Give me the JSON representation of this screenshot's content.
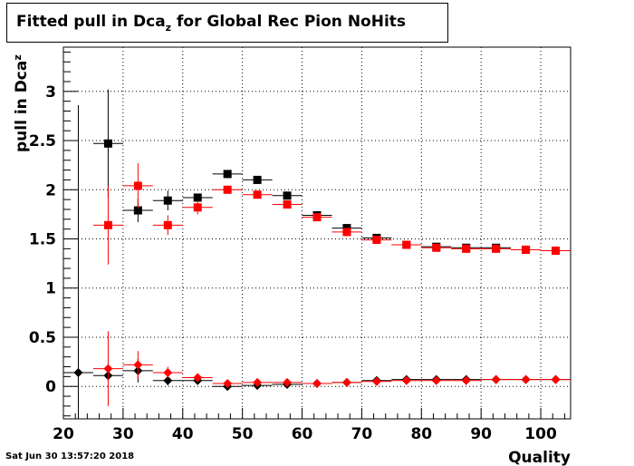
{
  "title": {
    "main": "Fitted pull in Dca",
    "sub": "z",
    "rest": " for Global Rec Pion NoHits"
  },
  "timestamp": "Sat Jun 30 13:57:20 2018",
  "chart_data": {
    "type": "scatter",
    "xlabel": "Quality",
    "ylabel": {
      "main": "pull in Dca",
      "sub": "z"
    },
    "xlim": [
      20,
      105
    ],
    "ylim": [
      -0.33,
      3.45
    ],
    "xticks": [
      20,
      30,
      40,
      50,
      60,
      70,
      80,
      90,
      100
    ],
    "yticks": [
      0,
      0.5,
      1,
      1.5,
      2,
      2.5,
      3
    ],
    "ytick_labels": [
      "0",
      "0.5",
      "1",
      "1.5",
      "2",
      "2.5",
      "3"
    ],
    "grid": true,
    "colors": {
      "black": "#000000",
      "red": "#ff0000"
    },
    "series": [
      {
        "marker": "square",
        "color": "black",
        "points": [
          {
            "x": 27.5,
            "y": 2.47,
            "xerr": 2.5,
            "yerr": 0.55
          },
          {
            "x": 32.5,
            "y": 1.79,
            "xerr": 2.5,
            "yerr": 0.12
          },
          {
            "x": 37.5,
            "y": 1.89,
            "xerr": 2.5,
            "yerr": 0.1
          },
          {
            "x": 42.5,
            "y": 1.92,
            "xerr": 2.5,
            "yerr": 0.04
          },
          {
            "x": 47.5,
            "y": 2.16,
            "xerr": 2.5,
            "yerr": 0.04
          },
          {
            "x": 52.5,
            "y": 2.1,
            "xerr": 2.5,
            "yerr": 0.03
          },
          {
            "x": 57.5,
            "y": 1.94,
            "xerr": 2.5,
            "yerr": 0.02
          },
          {
            "x": 62.5,
            "y": 1.74,
            "xerr": 2.5,
            "yerr": 0.02
          },
          {
            "x": 67.5,
            "y": 1.61,
            "xerr": 2.5,
            "yerr": 0.02
          },
          {
            "x": 72.5,
            "y": 1.51,
            "xerr": 2.5,
            "yerr": 0.01
          },
          {
            "x": 77.5,
            "y": 1.44,
            "xerr": 2.5,
            "yerr": 0.01
          },
          {
            "x": 82.5,
            "y": 1.42,
            "xerr": 2.5,
            "yerr": 0.01
          },
          {
            "x": 87.5,
            "y": 1.41,
            "xerr": 2.5,
            "yerr": 0.01
          },
          {
            "x": 92.5,
            "y": 1.41,
            "xerr": 2.5,
            "yerr": 0.01
          },
          {
            "x": 97.5,
            "y": 1.39,
            "xerr": 2.5,
            "yerr": 0.01
          },
          {
            "x": 102.5,
            "y": 1.38,
            "xerr": 2.5,
            "yerr": 0.01
          }
        ]
      },
      {
        "marker": "square",
        "color": "red",
        "points": [
          {
            "x": 27.5,
            "y": 1.64,
            "xerr": 2.5,
            "yerr": 0.4
          },
          {
            "x": 32.5,
            "y": 2.04,
            "xerr": 2.5,
            "yerr": 0.23
          },
          {
            "x": 37.5,
            "y": 1.64,
            "xerr": 2.5,
            "yerr": 0.1
          },
          {
            "x": 42.5,
            "y": 1.82,
            "xerr": 2.5,
            "yerr": 0.07
          },
          {
            "x": 47.5,
            "y": 2.0,
            "xerr": 2.5,
            "yerr": 0.04
          },
          {
            "x": 52.5,
            "y": 1.95,
            "xerr": 2.5,
            "yerr": 0.03
          },
          {
            "x": 57.5,
            "y": 1.85,
            "xerr": 2.5,
            "yerr": 0.02
          },
          {
            "x": 62.5,
            "y": 1.72,
            "xerr": 2.5,
            "yerr": 0.02
          },
          {
            "x": 67.5,
            "y": 1.57,
            "xerr": 2.5,
            "yerr": 0.02
          },
          {
            "x": 72.5,
            "y": 1.49,
            "xerr": 2.5,
            "yerr": 0.01
          },
          {
            "x": 77.5,
            "y": 1.44,
            "xerr": 2.5,
            "yerr": 0.01
          },
          {
            "x": 82.5,
            "y": 1.41,
            "xerr": 2.5,
            "yerr": 0.01
          },
          {
            "x": 87.5,
            "y": 1.4,
            "xerr": 2.5,
            "yerr": 0.01
          },
          {
            "x": 92.5,
            "y": 1.4,
            "xerr": 2.5,
            "yerr": 0.01
          },
          {
            "x": 97.5,
            "y": 1.39,
            "xerr": 2.5,
            "yerr": 0.01
          },
          {
            "x": 102.5,
            "y": 1.38,
            "xerr": 2.5,
            "yerr": 0.01
          }
        ]
      },
      {
        "marker": "diamond",
        "color": "black",
        "points": [
          {
            "x": 22.5,
            "y": 0.14,
            "xerr": 2.5,
            "yerr": 2.72
          },
          {
            "x": 27.5,
            "y": 0.11,
            "xerr": 2.5,
            "yerr": 0.05
          },
          {
            "x": 32.5,
            "y": 0.16,
            "xerr": 2.5,
            "yerr": 0.12
          },
          {
            "x": 37.5,
            "y": 0.06,
            "xerr": 2.5,
            "yerr": 0.05
          },
          {
            "x": 42.5,
            "y": 0.06,
            "xerr": 2.5,
            "yerr": 0.03
          },
          {
            "x": 47.5,
            "y": 0.0,
            "xerr": 2.5,
            "yerr": 0.02
          },
          {
            "x": 52.5,
            "y": 0.01,
            "xerr": 2.5,
            "yerr": 0.02
          },
          {
            "x": 57.5,
            "y": 0.02,
            "xerr": 2.5,
            "yerr": 0.02
          },
          {
            "x": 62.5,
            "y": 0.03,
            "xerr": 2.5,
            "yerr": 0.01
          },
          {
            "x": 67.5,
            "y": 0.04,
            "xerr": 2.5,
            "yerr": 0.01
          },
          {
            "x": 72.5,
            "y": 0.06,
            "xerr": 2.5,
            "yerr": 0.01
          },
          {
            "x": 77.5,
            "y": 0.07,
            "xerr": 2.5,
            "yerr": 0.01
          },
          {
            "x": 82.5,
            "y": 0.07,
            "xerr": 2.5,
            "yerr": 0.01
          },
          {
            "x": 87.5,
            "y": 0.07,
            "xerr": 2.5,
            "yerr": 0.01
          },
          {
            "x": 92.5,
            "y": 0.07,
            "xerr": 2.5,
            "yerr": 0.01
          },
          {
            "x": 97.5,
            "y": 0.07,
            "xerr": 2.5,
            "yerr": 0.01
          },
          {
            "x": 102.5,
            "y": 0.07,
            "xerr": 2.5,
            "yerr": 0.01
          }
        ]
      },
      {
        "marker": "diamond",
        "color": "red",
        "points": [
          {
            "x": 27.5,
            "y": 0.18,
            "xerr": 2.5,
            "yerr": 0.38
          },
          {
            "x": 32.5,
            "y": 0.22,
            "xerr": 2.5,
            "yerr": 0.14
          },
          {
            "x": 37.5,
            "y": 0.14,
            "xerr": 2.5,
            "yerr": 0.06
          },
          {
            "x": 42.5,
            "y": 0.09,
            "xerr": 2.5,
            "yerr": 0.03
          },
          {
            "x": 47.5,
            "y": 0.03,
            "xerr": 2.5,
            "yerr": 0.02
          },
          {
            "x": 52.5,
            "y": 0.04,
            "xerr": 2.5,
            "yerr": 0.02
          },
          {
            "x": 57.5,
            "y": 0.04,
            "xerr": 2.5,
            "yerr": 0.02
          },
          {
            "x": 62.5,
            "y": 0.03,
            "xerr": 2.5,
            "yerr": 0.01
          },
          {
            "x": 67.5,
            "y": 0.04,
            "xerr": 2.5,
            "yerr": 0.01
          },
          {
            "x": 72.5,
            "y": 0.05,
            "xerr": 2.5,
            "yerr": 0.01
          },
          {
            "x": 77.5,
            "y": 0.06,
            "xerr": 2.5,
            "yerr": 0.01
          },
          {
            "x": 82.5,
            "y": 0.06,
            "xerr": 2.5,
            "yerr": 0.01
          },
          {
            "x": 87.5,
            "y": 0.06,
            "xerr": 2.5,
            "yerr": 0.01
          },
          {
            "x": 92.5,
            "y": 0.07,
            "xerr": 2.5,
            "yerr": 0.01
          },
          {
            "x": 97.5,
            "y": 0.07,
            "xerr": 2.5,
            "yerr": 0.01
          },
          {
            "x": 102.5,
            "y": 0.07,
            "xerr": 2.5,
            "yerr": 0.01
          }
        ]
      }
    ]
  }
}
